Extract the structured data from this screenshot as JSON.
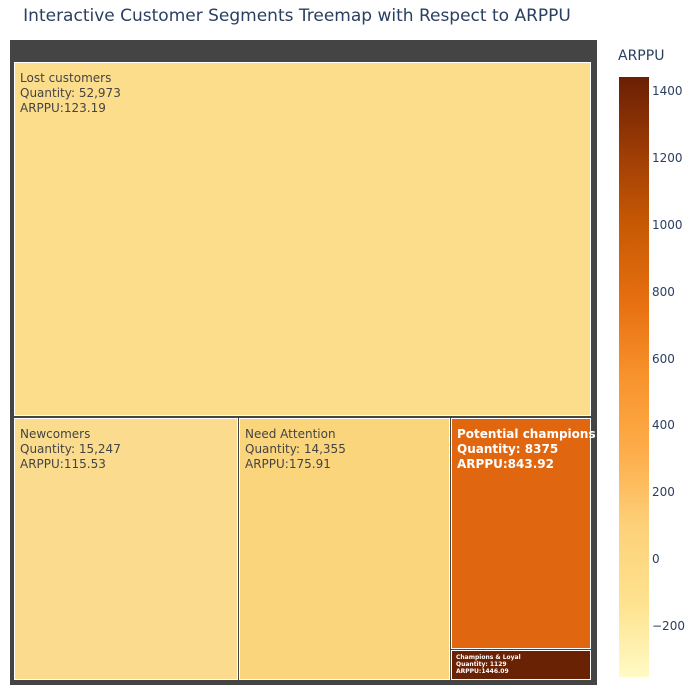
{
  "title": "Interactive Customer Segments Treemap with Respect to ARPPU",
  "colorbar": {
    "title": "ARPPU",
    "min": -350,
    "max": 1446.09,
    "ticks": [
      1400,
      1200,
      1000,
      800,
      600,
      400,
      200,
      0,
      -200
    ],
    "tick_labels": [
      "1400",
      "1200",
      "1000",
      "800",
      "600",
      "400",
      "200",
      "0",
      "−200"
    ],
    "colors": [
      "#fffac4",
      "#fee28e",
      "#fdd17a",
      "#fdad4a",
      "#f8932c",
      "#e76f10",
      "#c85a04",
      "#9d3c05",
      "#6a1f04"
    ]
  },
  "chart_data": {
    "type": "treemap",
    "segments": [
      {
        "name": "Lost customers",
        "quantity": 52973,
        "arppu": 123.19,
        "color": "#fbdd8c",
        "lines": [
          "Lost customers",
          "Quantity: 52,973",
          "ARPPU:123.19"
        ]
      },
      {
        "name": "Newcomers",
        "quantity": 15247,
        "arppu": 115.53,
        "color": "#fbdc8e",
        "lines": [
          "Newcomers",
          "Quantity: 15,247",
          "ARPPU:115.53"
        ]
      },
      {
        "name": "Need Attention",
        "quantity": 14355,
        "arppu": 175.91,
        "color": "#fbd57b",
        "lines": [
          "Need Attention",
          "Quantity: 14,355",
          "ARPPU:175.91"
        ]
      },
      {
        "name": "Potential champions",
        "quantity": 8375,
        "arppu": 843.92,
        "color": "#e06610",
        "lines": [
          "Potential champions",
          "Quantity: 8375",
          "ARPPU:843.92"
        ]
      },
      {
        "name": "Champions & Loyal",
        "quantity": 1129,
        "arppu": 1446.09,
        "color": "#6a2204",
        "lines": [
          "Champions & Loyal",
          "Quantity: 1129",
          "ARPPU:1446.09"
        ]
      }
    ]
  }
}
